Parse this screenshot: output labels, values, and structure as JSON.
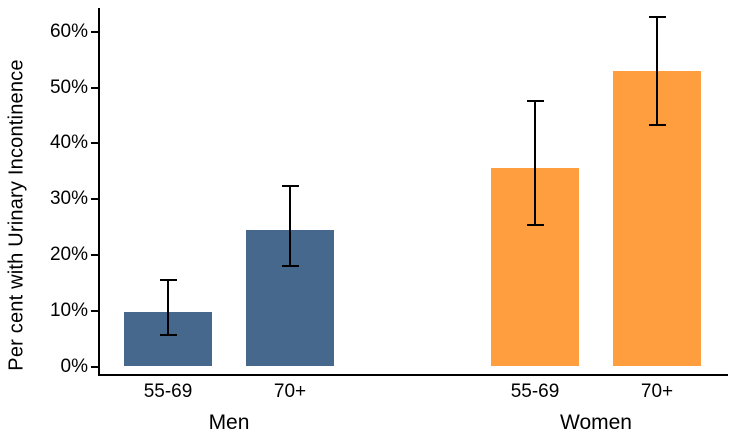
{
  "chart_data": {
    "type": "bar",
    "title": "",
    "xlabel": "",
    "ylabel": "Per cent with Urinary Incontinence",
    "ylim": [
      0,
      64
    ],
    "yticks": [
      0,
      10,
      20,
      30,
      40,
      50,
      60
    ],
    "ytick_suffix": "%",
    "grid": false,
    "legend": "none",
    "error_bars": true,
    "axis_color": "#000000",
    "error_bar_color": "#000000",
    "groups": [
      {
        "label": "Men",
        "color": "#45688C",
        "bars": [
          {
            "category": "55-69",
            "value": 9.7,
            "ci_low": 5.6,
            "ci_high": 15.5
          },
          {
            "category": "70+",
            "value": 24.5,
            "ci_low": 18.0,
            "ci_high": 32.3
          }
        ]
      },
      {
        "label": "Women",
        "color": "#FF9E3E",
        "bars": [
          {
            "category": "55-69",
            "value": 35.6,
            "ci_low": 25.3,
            "ci_high": 47.5
          },
          {
            "category": "70+",
            "value": 52.9,
            "ci_low": 43.3,
            "ci_high": 62.6
          }
        ]
      }
    ]
  }
}
